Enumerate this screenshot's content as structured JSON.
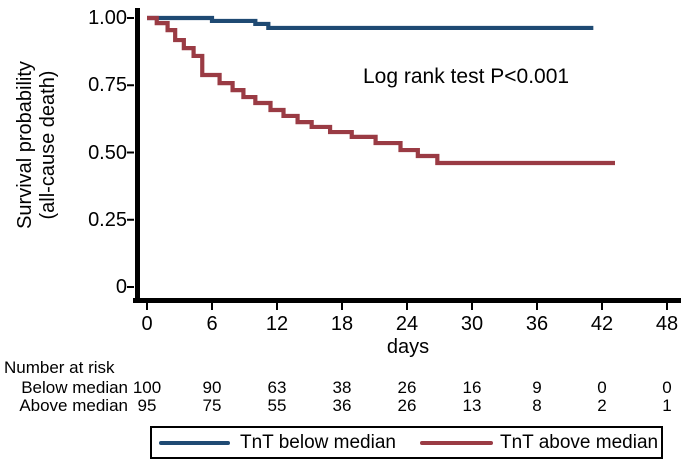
{
  "annotation": "Log rank test P<0.001",
  "y_axis": {
    "title_line1": "Survival probability",
    "title_line2": "(all-cause death)",
    "tick_labels": [
      "1.00",
      "0.75",
      "0.50",
      "0.25",
      "0"
    ],
    "tick_values": [
      1.0,
      0.75,
      0.5,
      0.25,
      0
    ]
  },
  "x_axis": {
    "label": "days",
    "tick_values": [
      0,
      6,
      12,
      18,
      24,
      30,
      36,
      42,
      48
    ]
  },
  "chart_data": {
    "type": "line",
    "subtype": "kaplan-meier-step",
    "title": "",
    "xlabel": "days",
    "ylabel": "Survival probability (all-cause death)",
    "xlim": [
      0,
      48
    ],
    "ylim": [
      0,
      1
    ],
    "x_ticks": [
      0,
      6,
      12,
      18,
      24,
      30,
      36,
      42,
      48
    ],
    "y_ticks": [
      0,
      0.25,
      0.5,
      0.75,
      1.0
    ],
    "grid": false,
    "legend_position": "bottom",
    "annotation": "Log rank test P<0.001",
    "series": [
      {
        "name": "TnT below median",
        "color": "#1f4a73",
        "end_x": 41.2,
        "steps": [
          [
            0,
            1.0
          ],
          [
            6,
            0.989
          ],
          [
            10,
            0.978
          ],
          [
            11.2,
            0.963
          ]
        ]
      },
      {
        "name": "TnT above median",
        "color": "#9a3b44",
        "end_x": 43.2,
        "steps": [
          [
            0,
            1.0
          ],
          [
            0.9,
            0.981
          ],
          [
            1.9,
            0.955
          ],
          [
            2.6,
            0.918
          ],
          [
            3.4,
            0.888
          ],
          [
            4.3,
            0.859
          ],
          [
            5.1,
            0.788
          ],
          [
            6.7,
            0.758
          ],
          [
            7.9,
            0.732
          ],
          [
            8.9,
            0.706
          ],
          [
            10,
            0.684
          ],
          [
            11.4,
            0.658
          ],
          [
            12.6,
            0.636
          ],
          [
            13.9,
            0.613
          ],
          [
            15.2,
            0.595
          ],
          [
            16.9,
            0.576
          ],
          [
            18.9,
            0.558
          ],
          [
            21.1,
            0.535
          ],
          [
            23.4,
            0.509
          ],
          [
            25,
            0.487
          ],
          [
            26.8,
            0.461
          ]
        ]
      }
    ]
  },
  "risk_table": {
    "header": "Number at risk",
    "rows": [
      {
        "label": "Below median",
        "counts": [
          "100",
          "90",
          "63",
          "38",
          "26",
          "16",
          "9",
          "0",
          "0"
        ]
      },
      {
        "label": "Above median",
        "counts": [
          "95",
          "75",
          "55",
          "36",
          "26",
          "13",
          "8",
          "2",
          "1"
        ]
      }
    ]
  },
  "legend": {
    "items": [
      {
        "label": "TnT below median",
        "color": "#1f4a73"
      },
      {
        "label": "TnT above median",
        "color": "#9a3b44"
      }
    ]
  },
  "colors": {
    "axis": "#000000",
    "background": "#ffffff",
    "below_median": "#1f4a73",
    "above_median": "#9a3b44"
  }
}
